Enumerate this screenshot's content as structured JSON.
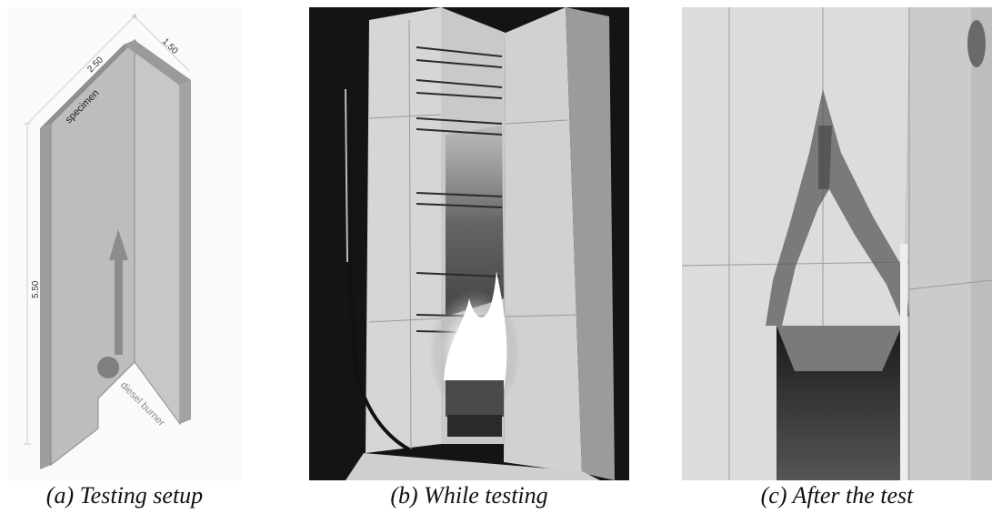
{
  "panel_a": {
    "dimensions": {
      "width_a": "2.50",
      "width_b": "1.50",
      "height": "5.50"
    },
    "labels": {
      "specimen": "specimen",
      "burner": "diesel burner"
    }
  },
  "captions": {
    "a": "(a) Testing setup",
    "b": "(b) While testing",
    "c": "(c) After the test"
  },
  "colors": {
    "panel_face": "#b9b9b9",
    "panel_edge": "#8a8a8a",
    "arrow": "#8c8c8c",
    "burner": "#7f7f7f",
    "photo_dark": "#141414"
  }
}
